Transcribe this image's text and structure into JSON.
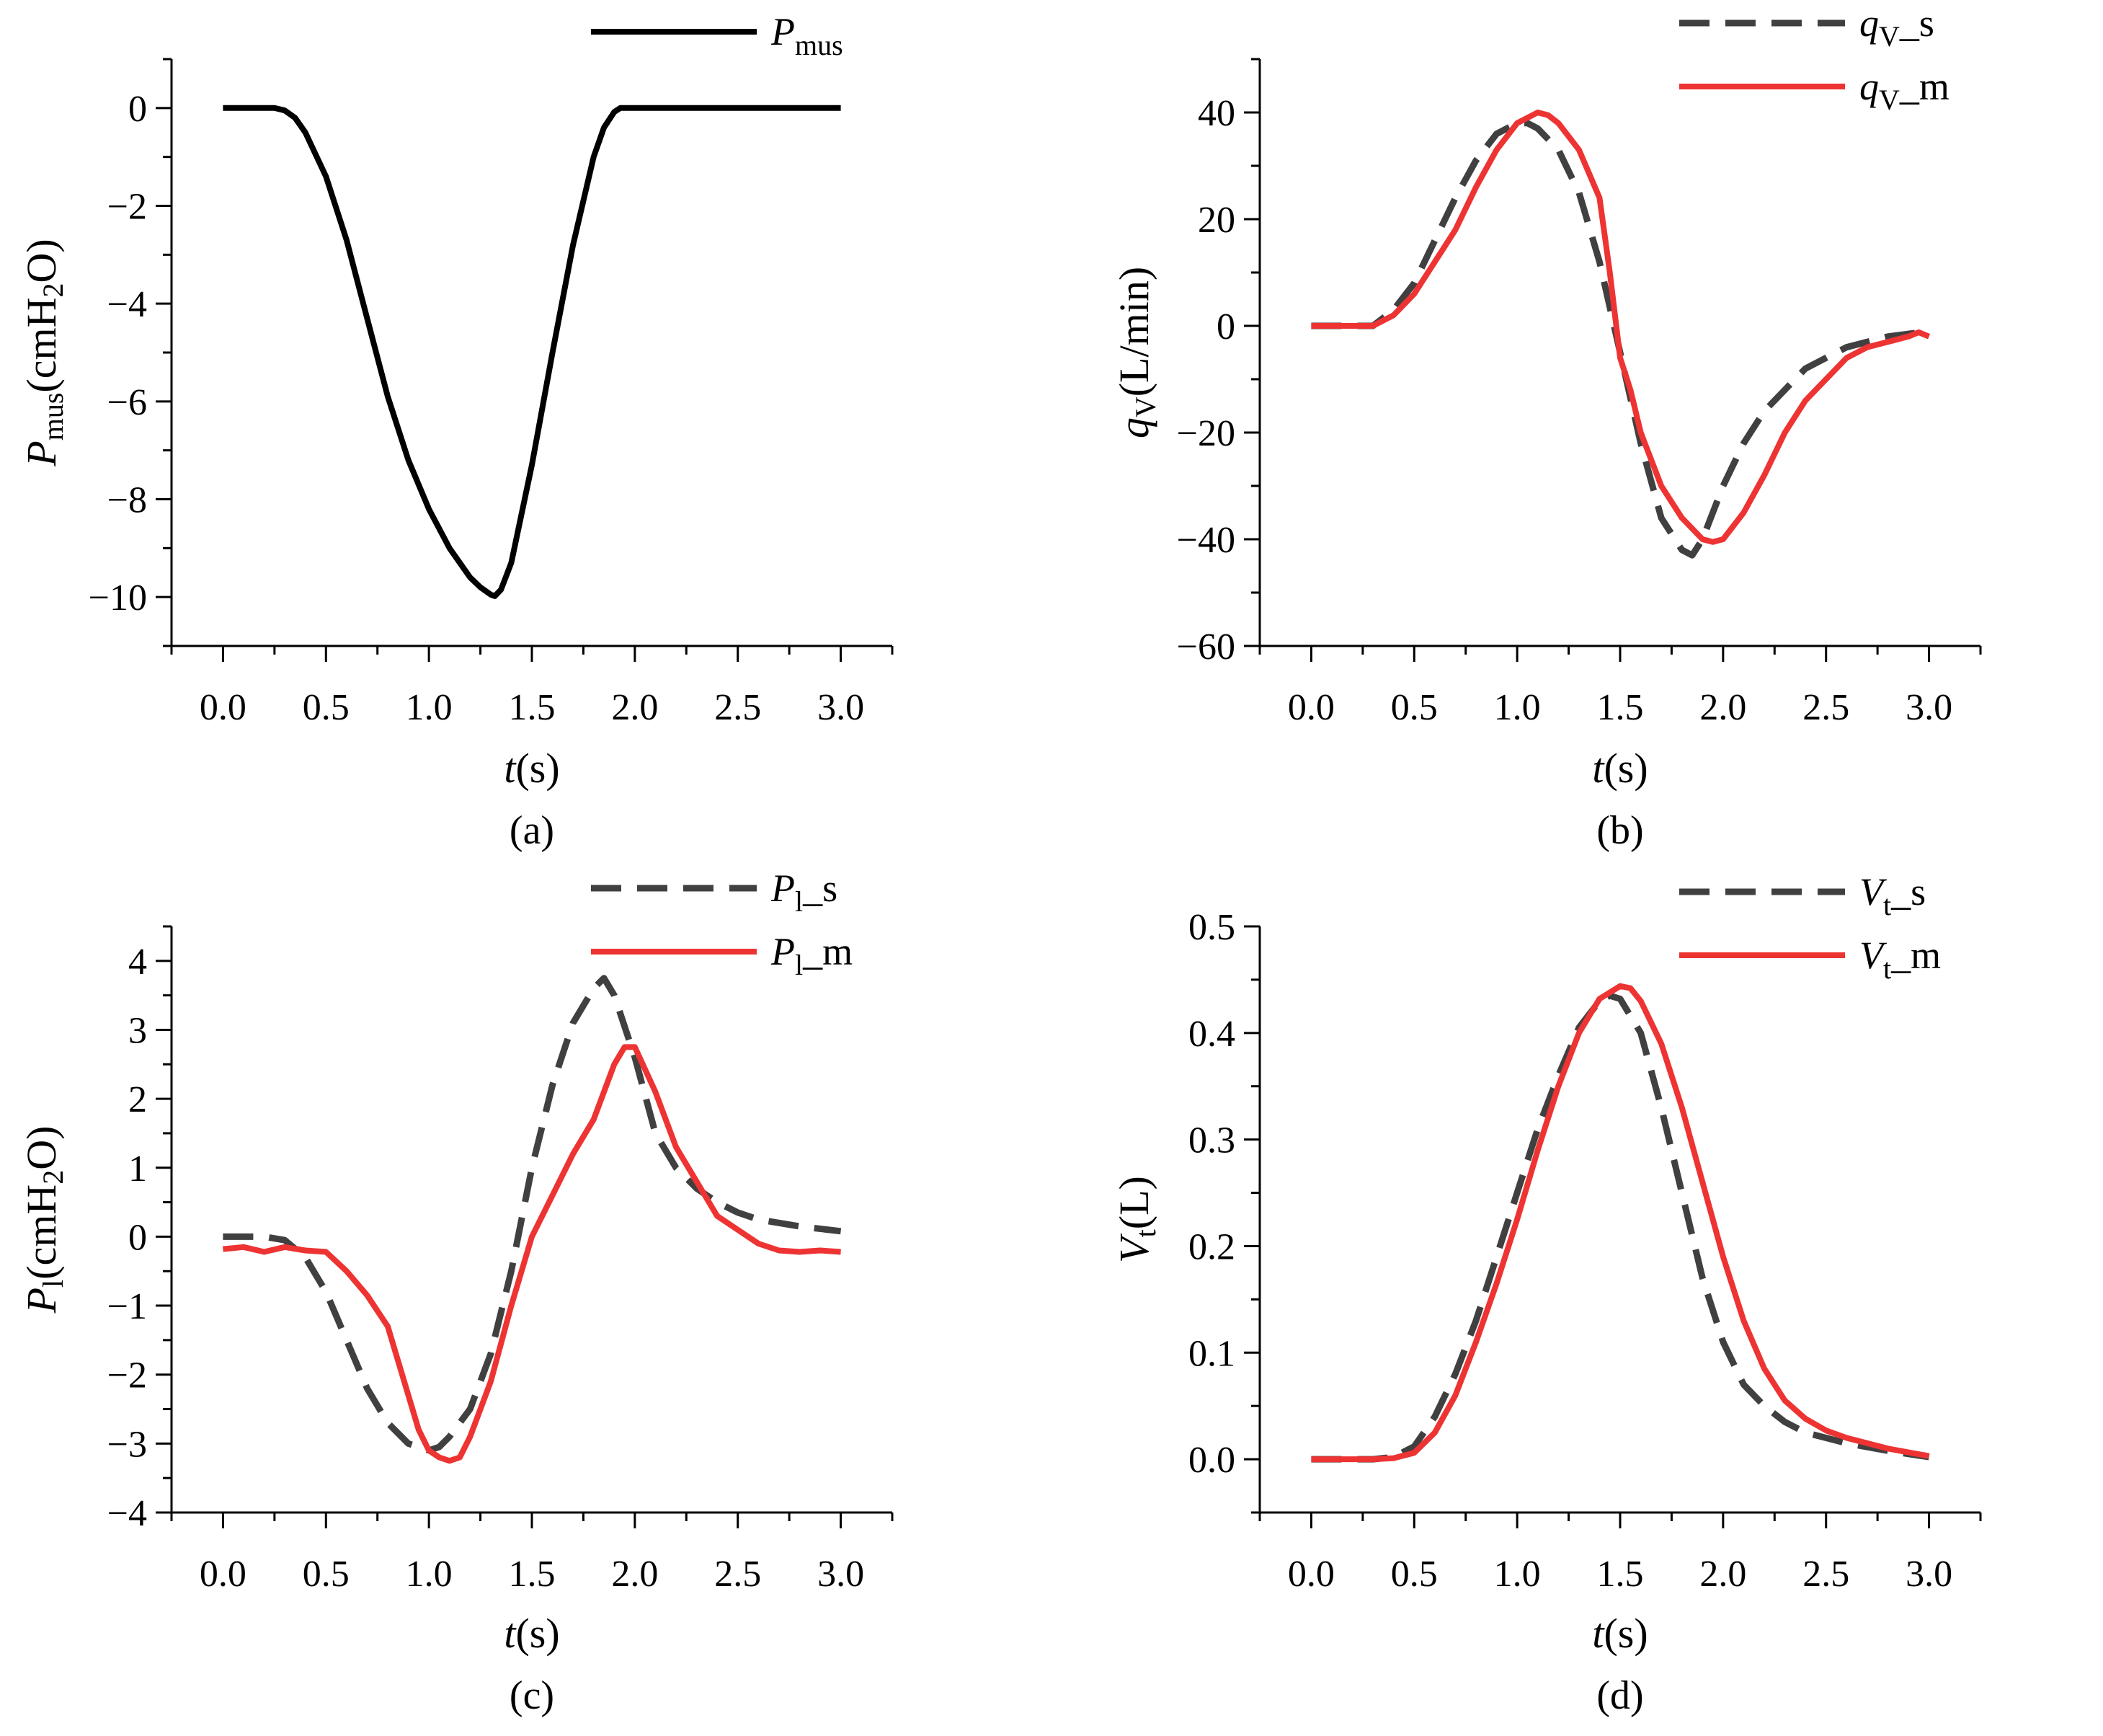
{
  "chart_data": [
    {
      "type": "line",
      "caption": "(a)",
      "xlabel": {
        "main": "t",
        "rest": "(s)"
      },
      "ylabel": {
        "main": "P",
        "sub": "mus",
        "rest": "(cmH",
        "sub2": "2",
        "rest2": "O)"
      },
      "xlim": [
        -0.25,
        3.25
      ],
      "ylim": [
        -11,
        1
      ],
      "xticks": [
        "0.0",
        "0.5",
        "1.0",
        "1.5",
        "2.0",
        "2.5",
        "3.0"
      ],
      "xtick_values": [
        0,
        0.5,
        1,
        1.5,
        2,
        2.5,
        3
      ],
      "yticks": [
        "0",
        "−2",
        "−4",
        "−6",
        "−8",
        "−10"
      ],
      "ytick_values": [
        0,
        -2,
        -4,
        -6,
        -8,
        -10
      ],
      "series": [
        {
          "name": "P",
          "name_sub": "mus",
          "name_suffix": "",
          "style": "solid",
          "color": "#000000",
          "x": [
            0,
            0.25,
            0.3,
            0.35,
            0.4,
            0.5,
            0.6,
            0.7,
            0.8,
            0.9,
            1.0,
            1.1,
            1.2,
            1.25,
            1.3,
            1.32,
            1.35,
            1.4,
            1.5,
            1.6,
            1.7,
            1.8,
            1.85,
            1.9,
            1.93,
            2.0,
            2.5,
            3.0
          ],
          "y": [
            0,
            0,
            -0.05,
            -0.2,
            -0.5,
            -1.4,
            -2.7,
            -4.3,
            -5.9,
            -7.2,
            -8.2,
            -9.0,
            -9.6,
            -9.8,
            -9.95,
            -9.98,
            -9.85,
            -9.3,
            -7.3,
            -5.0,
            -2.8,
            -1.0,
            -0.4,
            -0.08,
            0,
            0,
            0,
            0
          ]
        }
      ]
    },
    {
      "type": "line",
      "caption": "(b)",
      "xlabel": {
        "main": "t",
        "rest": "(s)"
      },
      "ylabel": {
        "main": "q",
        "sub": "V",
        "rest": "(L/min)",
        "sub2": "",
        "rest2": ""
      },
      "xlim": [
        -0.25,
        3.25
      ],
      "ylim": [
        -60,
        50
      ],
      "xticks": [
        "0.0",
        "0.5",
        "1.0",
        "1.5",
        "2.0",
        "2.5",
        "3.0"
      ],
      "xtick_values": [
        0,
        0.5,
        1,
        1.5,
        2,
        2.5,
        3
      ],
      "yticks": [
        "40",
        "20",
        "0",
        "−20",
        "−40",
        "−60"
      ],
      "ytick_values": [
        40,
        20,
        0,
        -20,
        -40,
        -60
      ],
      "series": [
        {
          "name": "q",
          "name_sub": "V",
          "name_suffix": "_s",
          "style": "dashed",
          "color": "#404040",
          "x": [
            0,
            0.3,
            0.4,
            0.5,
            0.6,
            0.7,
            0.8,
            0.9,
            1.0,
            1.05,
            1.1,
            1.2,
            1.3,
            1.4,
            1.5,
            1.6,
            1.7,
            1.8,
            1.85,
            1.9,
            2.0,
            2.1,
            2.2,
            2.4,
            2.6,
            2.8,
            3.0
          ],
          "y": [
            0,
            0,
            3,
            8,
            16,
            24,
            31,
            36,
            38,
            38,
            37,
            33,
            25,
            12,
            -5,
            -22,
            -36,
            -42,
            -43,
            -40,
            -30,
            -22,
            -16,
            -8,
            -4,
            -2,
            -1
          ]
        },
        {
          "name": "q",
          "name_sub": "V",
          "name_suffix": "_m",
          "style": "solid",
          "color": "#ee3333",
          "x": [
            0,
            0.3,
            0.4,
            0.5,
            0.6,
            0.7,
            0.8,
            0.9,
            1.0,
            1.1,
            1.15,
            1.2,
            1.3,
            1.4,
            1.45,
            1.5,
            1.55,
            1.6,
            1.7,
            1.8,
            1.9,
            1.95,
            2.0,
            2.1,
            2.2,
            2.3,
            2.4,
            2.5,
            2.6,
            2.7,
            2.8,
            2.9,
            2.95,
            3.0
          ],
          "y": [
            0,
            0,
            2,
            6,
            12,
            18,
            26,
            33,
            38,
            40,
            39.5,
            38,
            33,
            24,
            10,
            -6,
            -12,
            -20,
            -30,
            -36,
            -40,
            -40.5,
            -40,
            -35,
            -28,
            -20,
            -14,
            -10,
            -6,
            -4,
            -3,
            -2,
            -1.2,
            -2
          ]
        }
      ]
    },
    {
      "type": "line",
      "caption": "(c)",
      "xlabel": {
        "main": "t",
        "rest": "(s)"
      },
      "ylabel": {
        "main": "P",
        "sub": "l",
        "rest": "(cmH",
        "sub2": "2",
        "rest2": "O)"
      },
      "xlim": [
        -0.25,
        3.25
      ],
      "ylim": [
        -4,
        4.5
      ],
      "xticks": [
        "0.0",
        "0.5",
        "1.0",
        "1.5",
        "2.0",
        "2.5",
        "3.0"
      ],
      "xtick_values": [
        0,
        0.5,
        1,
        1.5,
        2,
        2.5,
        3
      ],
      "yticks": [
        "4",
        "3",
        "2",
        "1",
        "0",
        "−1",
        "−2",
        "−3",
        "−4"
      ],
      "ytick_values": [
        4,
        3,
        2,
        1,
        0,
        -1,
        -2,
        -3,
        -4
      ],
      "series": [
        {
          "name": "P",
          "name_sub": "l",
          "name_suffix": "_s",
          "style": "dashed",
          "color": "#404040",
          "x": [
            0,
            0.2,
            0.3,
            0.4,
            0.5,
            0.6,
            0.7,
            0.8,
            0.9,
            1.0,
            1.05,
            1.1,
            1.2,
            1.3,
            1.4,
            1.5,
            1.6,
            1.7,
            1.8,
            1.85,
            1.9,
            2.0,
            2.1,
            2.2,
            2.3,
            2.4,
            2.5,
            2.6,
            2.8,
            3.0
          ],
          "y": [
            0,
            0,
            -0.05,
            -0.3,
            -0.8,
            -1.5,
            -2.2,
            -2.7,
            -3.0,
            -3.1,
            -3.05,
            -2.9,
            -2.5,
            -1.7,
            -0.5,
            1.0,
            2.2,
            3.1,
            3.6,
            3.75,
            3.5,
            2.6,
            1.5,
            1.0,
            0.7,
            0.5,
            0.35,
            0.25,
            0.15,
            0.08
          ]
        },
        {
          "name": "P",
          "name_sub": "l",
          "name_suffix": "_m",
          "style": "solid",
          "color": "#ee3333",
          "x": [
            0,
            0.1,
            0.2,
            0.3,
            0.4,
            0.5,
            0.6,
            0.7,
            0.8,
            0.85,
            0.9,
            0.95,
            1.0,
            1.05,
            1.1,
            1.15,
            1.2,
            1.3,
            1.4,
            1.5,
            1.6,
            1.7,
            1.8,
            1.9,
            1.95,
            2.0,
            2.1,
            2.2,
            2.3,
            2.4,
            2.5,
            2.6,
            2.7,
            2.8,
            2.9,
            3.0
          ],
          "y": [
            -0.18,
            -0.15,
            -0.22,
            -0.15,
            -0.2,
            -0.22,
            -0.5,
            -0.85,
            -1.3,
            -1.8,
            -2.3,
            -2.8,
            -3.1,
            -3.2,
            -3.25,
            -3.2,
            -2.9,
            -2.1,
            -1.0,
            0.0,
            0.6,
            1.2,
            1.7,
            2.5,
            2.75,
            2.75,
            2.1,
            1.3,
            0.8,
            0.3,
            0.1,
            -0.1,
            -0.2,
            -0.22,
            -0.2,
            -0.22
          ]
        }
      ]
    },
    {
      "type": "line",
      "caption": "(d)",
      "xlabel": {
        "main": "t",
        "rest": "(s)"
      },
      "ylabel": {
        "main": "V",
        "sub": "t",
        "rest": "(L)",
        "sub2": "",
        "rest2": ""
      },
      "xlim": [
        -0.25,
        3.25
      ],
      "ylim": [
        -0.05,
        0.5
      ],
      "xticks": [
        "0.0",
        "0.5",
        "1.0",
        "1.5",
        "2.0",
        "2.5",
        "3.0"
      ],
      "xtick_values": [
        0,
        0.5,
        1,
        1.5,
        2,
        2.5,
        3
      ],
      "yticks": [
        "0.5",
        "0.4",
        "0.3",
        "0.2",
        "0.1",
        "0.0"
      ],
      "ytick_values": [
        0.5,
        0.4,
        0.3,
        0.2,
        0.1,
        0.0
      ],
      "series": [
        {
          "name": "V",
          "name_sub": "t",
          "name_suffix": "_s",
          "style": "dashed",
          "color": "#404040",
          "x": [
            0,
            0.3,
            0.4,
            0.5,
            0.6,
            0.7,
            0.8,
            0.9,
            1.0,
            1.1,
            1.2,
            1.3,
            1.4,
            1.45,
            1.5,
            1.6,
            1.7,
            1.8,
            1.9,
            2.0,
            2.1,
            2.2,
            2.3,
            2.4,
            2.6,
            2.8,
            3.0
          ],
          "y": [
            0,
            0,
            0.002,
            0.012,
            0.04,
            0.08,
            0.13,
            0.19,
            0.25,
            0.31,
            0.36,
            0.405,
            0.43,
            0.435,
            0.432,
            0.4,
            0.33,
            0.25,
            0.17,
            0.11,
            0.07,
            0.05,
            0.035,
            0.025,
            0.015,
            0.008,
            0.002
          ]
        },
        {
          "name": "V",
          "name_sub": "t",
          "name_suffix": "_m",
          "style": "solid",
          "color": "#ee3333",
          "x": [
            0,
            0.3,
            0.4,
            0.5,
            0.6,
            0.7,
            0.8,
            0.9,
            1.0,
            1.1,
            1.2,
            1.3,
            1.4,
            1.5,
            1.55,
            1.6,
            1.7,
            1.8,
            1.9,
            2.0,
            2.1,
            2.2,
            2.3,
            2.4,
            2.5,
            2.6,
            2.8,
            3.0
          ],
          "y": [
            0,
            0,
            0.001,
            0.006,
            0.025,
            0.06,
            0.11,
            0.165,
            0.225,
            0.29,
            0.35,
            0.4,
            0.432,
            0.444,
            0.442,
            0.43,
            0.39,
            0.33,
            0.26,
            0.19,
            0.13,
            0.085,
            0.055,
            0.038,
            0.027,
            0.02,
            0.01,
            0.003
          ]
        }
      ]
    }
  ]
}
